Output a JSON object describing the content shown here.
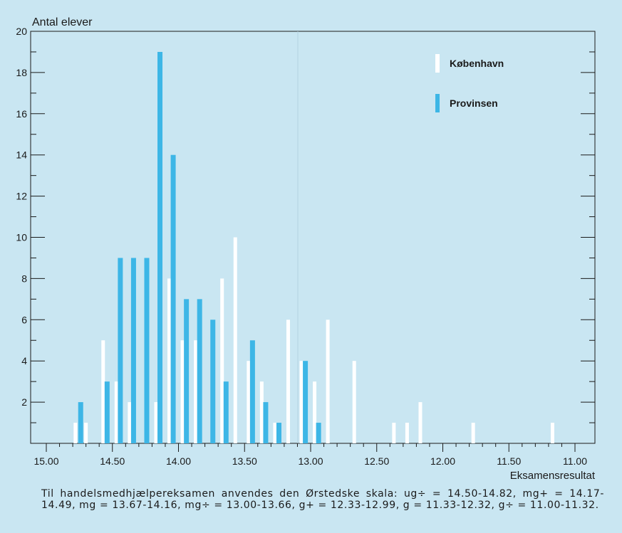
{
  "chart_data": {
    "type": "bar",
    "ylabel": "Antal elever",
    "xlabel": "Eksamensresultat",
    "ylim": [
      0,
      20
    ],
    "yticks": [
      2,
      4,
      6,
      8,
      10,
      12,
      14,
      16,
      18,
      20
    ],
    "xlim": [
      15.0,
      11.0
    ],
    "x_reversed": true,
    "xticks": [
      "15.00",
      "14.50",
      "14.00",
      "13.50",
      "13.00",
      "12.50",
      "12.00",
      "11.50",
      "11.00"
    ],
    "legend_position": "top-right",
    "series": [
      {
        "name": "København",
        "color": "#ffffff",
        "points": [
          [
            14.78,
            1
          ],
          [
            14.7,
            1
          ],
          [
            14.57,
            5
          ],
          [
            14.47,
            3
          ],
          [
            14.37,
            2
          ],
          [
            14.17,
            2
          ],
          [
            14.07,
            8
          ],
          [
            13.97,
            5
          ],
          [
            13.87,
            5
          ],
          [
            13.67,
            8
          ],
          [
            13.57,
            10
          ],
          [
            13.47,
            4
          ],
          [
            13.37,
            3
          ],
          [
            13.27,
            1
          ],
          [
            13.17,
            6
          ],
          [
            13.07,
            4
          ],
          [
            12.97,
            3
          ],
          [
            12.87,
            1
          ],
          [
            12.87,
            6
          ],
          [
            12.67,
            4
          ],
          [
            12.37,
            1
          ],
          [
            12.27,
            1
          ],
          [
            12.17,
            2
          ],
          [
            11.77,
            1
          ],
          [
            11.17,
            1
          ]
        ]
      },
      {
        "name": "Provinsen",
        "color": "#3db6e6",
        "points": [
          [
            14.74,
            2
          ],
          [
            14.54,
            3
          ],
          [
            14.44,
            9
          ],
          [
            14.34,
            9
          ],
          [
            14.24,
            9
          ],
          [
            14.14,
            19
          ],
          [
            14.04,
            14
          ],
          [
            13.94,
            7
          ],
          [
            13.84,
            7
          ],
          [
            13.74,
            6
          ],
          [
            13.64,
            3
          ],
          [
            13.44,
            5
          ],
          [
            13.34,
            2
          ],
          [
            13.24,
            1
          ],
          [
            13.04,
            4
          ],
          [
            12.94,
            1
          ]
        ]
      }
    ]
  },
  "caption": "Til handelsmedhjælpereksamen anvendes den Ørstedske skala: ug÷ = 14.50-14.82, mg+ = 14.17-14.49, mg = 13.67-14.16, mg÷ = 13.00-13.66, g+ = 12.33-12.99, g = 11.33-12.32, g÷ = 11.00-11.32."
}
